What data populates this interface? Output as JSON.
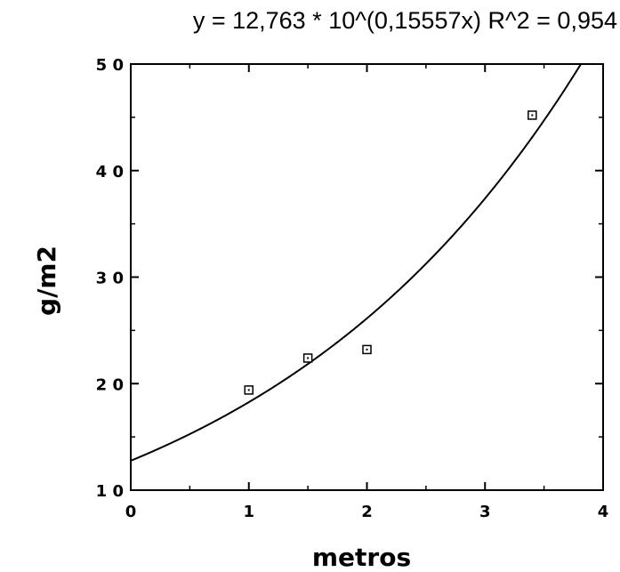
{
  "chart_data": {
    "type": "scatter",
    "title": "y = 12,763 * 10^(0,15557x)   R^2 = 0,954",
    "xlabel": "metros",
    "ylabel": "g/m2",
    "xlim": [
      0,
      4
    ],
    "ylim": [
      10,
      50
    ],
    "x_ticks": [
      0,
      1,
      2,
      3,
      4
    ],
    "x_tick_labels": [
      "0",
      "1",
      "2",
      "3",
      "4"
    ],
    "y_ticks": [
      10,
      20,
      30,
      40,
      50
    ],
    "y_tick_labels": [
      "1 0",
      "2 0",
      "3 0",
      "4 0",
      "5 0"
    ],
    "grid": false,
    "points": [
      {
        "x": 1.0,
        "y": 19.4
      },
      {
        "x": 1.5,
        "y": 22.4
      },
      {
        "x": 2.0,
        "y": 23.2
      },
      {
        "x": 3.4,
        "y": 45.2
      }
    ],
    "fit": {
      "type": "exponential",
      "a": 12.763,
      "base": 10,
      "b": 0.15557
    }
  }
}
